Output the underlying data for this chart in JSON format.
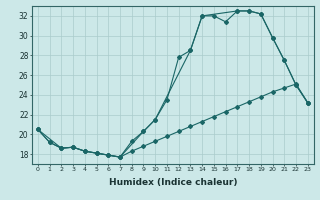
{
  "xlabel": "Humidex (Indice chaleur)",
  "ylabel": "",
  "bg_color": "#cce8e8",
  "grid_color": "#aacccc",
  "line_color": "#1a6666",
  "xlim": [
    -0.5,
    23.5
  ],
  "ylim": [
    17.0,
    33.0
  ],
  "xticks": [
    0,
    1,
    2,
    3,
    4,
    5,
    6,
    7,
    8,
    9,
    10,
    11,
    12,
    13,
    14,
    15,
    16,
    17,
    18,
    19,
    20,
    21,
    22,
    23
  ],
  "yticks": [
    18,
    20,
    22,
    24,
    26,
    28,
    30,
    32
  ],
  "line1_x": [
    0,
    1,
    2,
    3,
    4,
    5,
    6,
    7,
    8,
    9,
    10,
    11,
    12,
    13,
    14,
    15,
    16,
    17,
    18,
    19,
    20,
    21,
    22,
    23
  ],
  "line1_y": [
    20.5,
    19.2,
    18.6,
    18.7,
    18.3,
    18.1,
    17.9,
    17.7,
    19.3,
    20.3,
    21.5,
    23.5,
    27.8,
    28.5,
    32.0,
    32.0,
    31.4,
    32.5,
    32.5,
    32.2,
    29.8,
    27.5,
    25.0,
    23.2
  ],
  "line2_x": [
    0,
    1,
    2,
    3,
    4,
    5,
    6,
    7,
    8,
    9,
    10,
    11,
    12,
    13,
    14,
    15,
    16,
    17,
    18,
    19,
    20,
    21,
    22,
    23
  ],
  "line2_y": [
    20.5,
    19.2,
    18.6,
    18.7,
    18.3,
    18.1,
    17.9,
    17.7,
    18.3,
    18.8,
    19.3,
    19.8,
    20.3,
    20.8,
    21.3,
    21.8,
    22.3,
    22.8,
    23.3,
    23.8,
    24.3,
    24.7,
    25.1,
    23.2
  ],
  "line3_x": [
    0,
    2,
    3,
    4,
    5,
    6,
    7,
    9,
    10,
    13,
    14,
    17,
    18,
    19,
    20,
    21,
    22,
    23
  ],
  "line3_y": [
    20.5,
    18.6,
    18.7,
    18.3,
    18.1,
    17.9,
    17.7,
    20.3,
    21.5,
    28.5,
    32.0,
    32.5,
    32.5,
    32.2,
    29.8,
    27.5,
    25.0,
    23.2
  ]
}
